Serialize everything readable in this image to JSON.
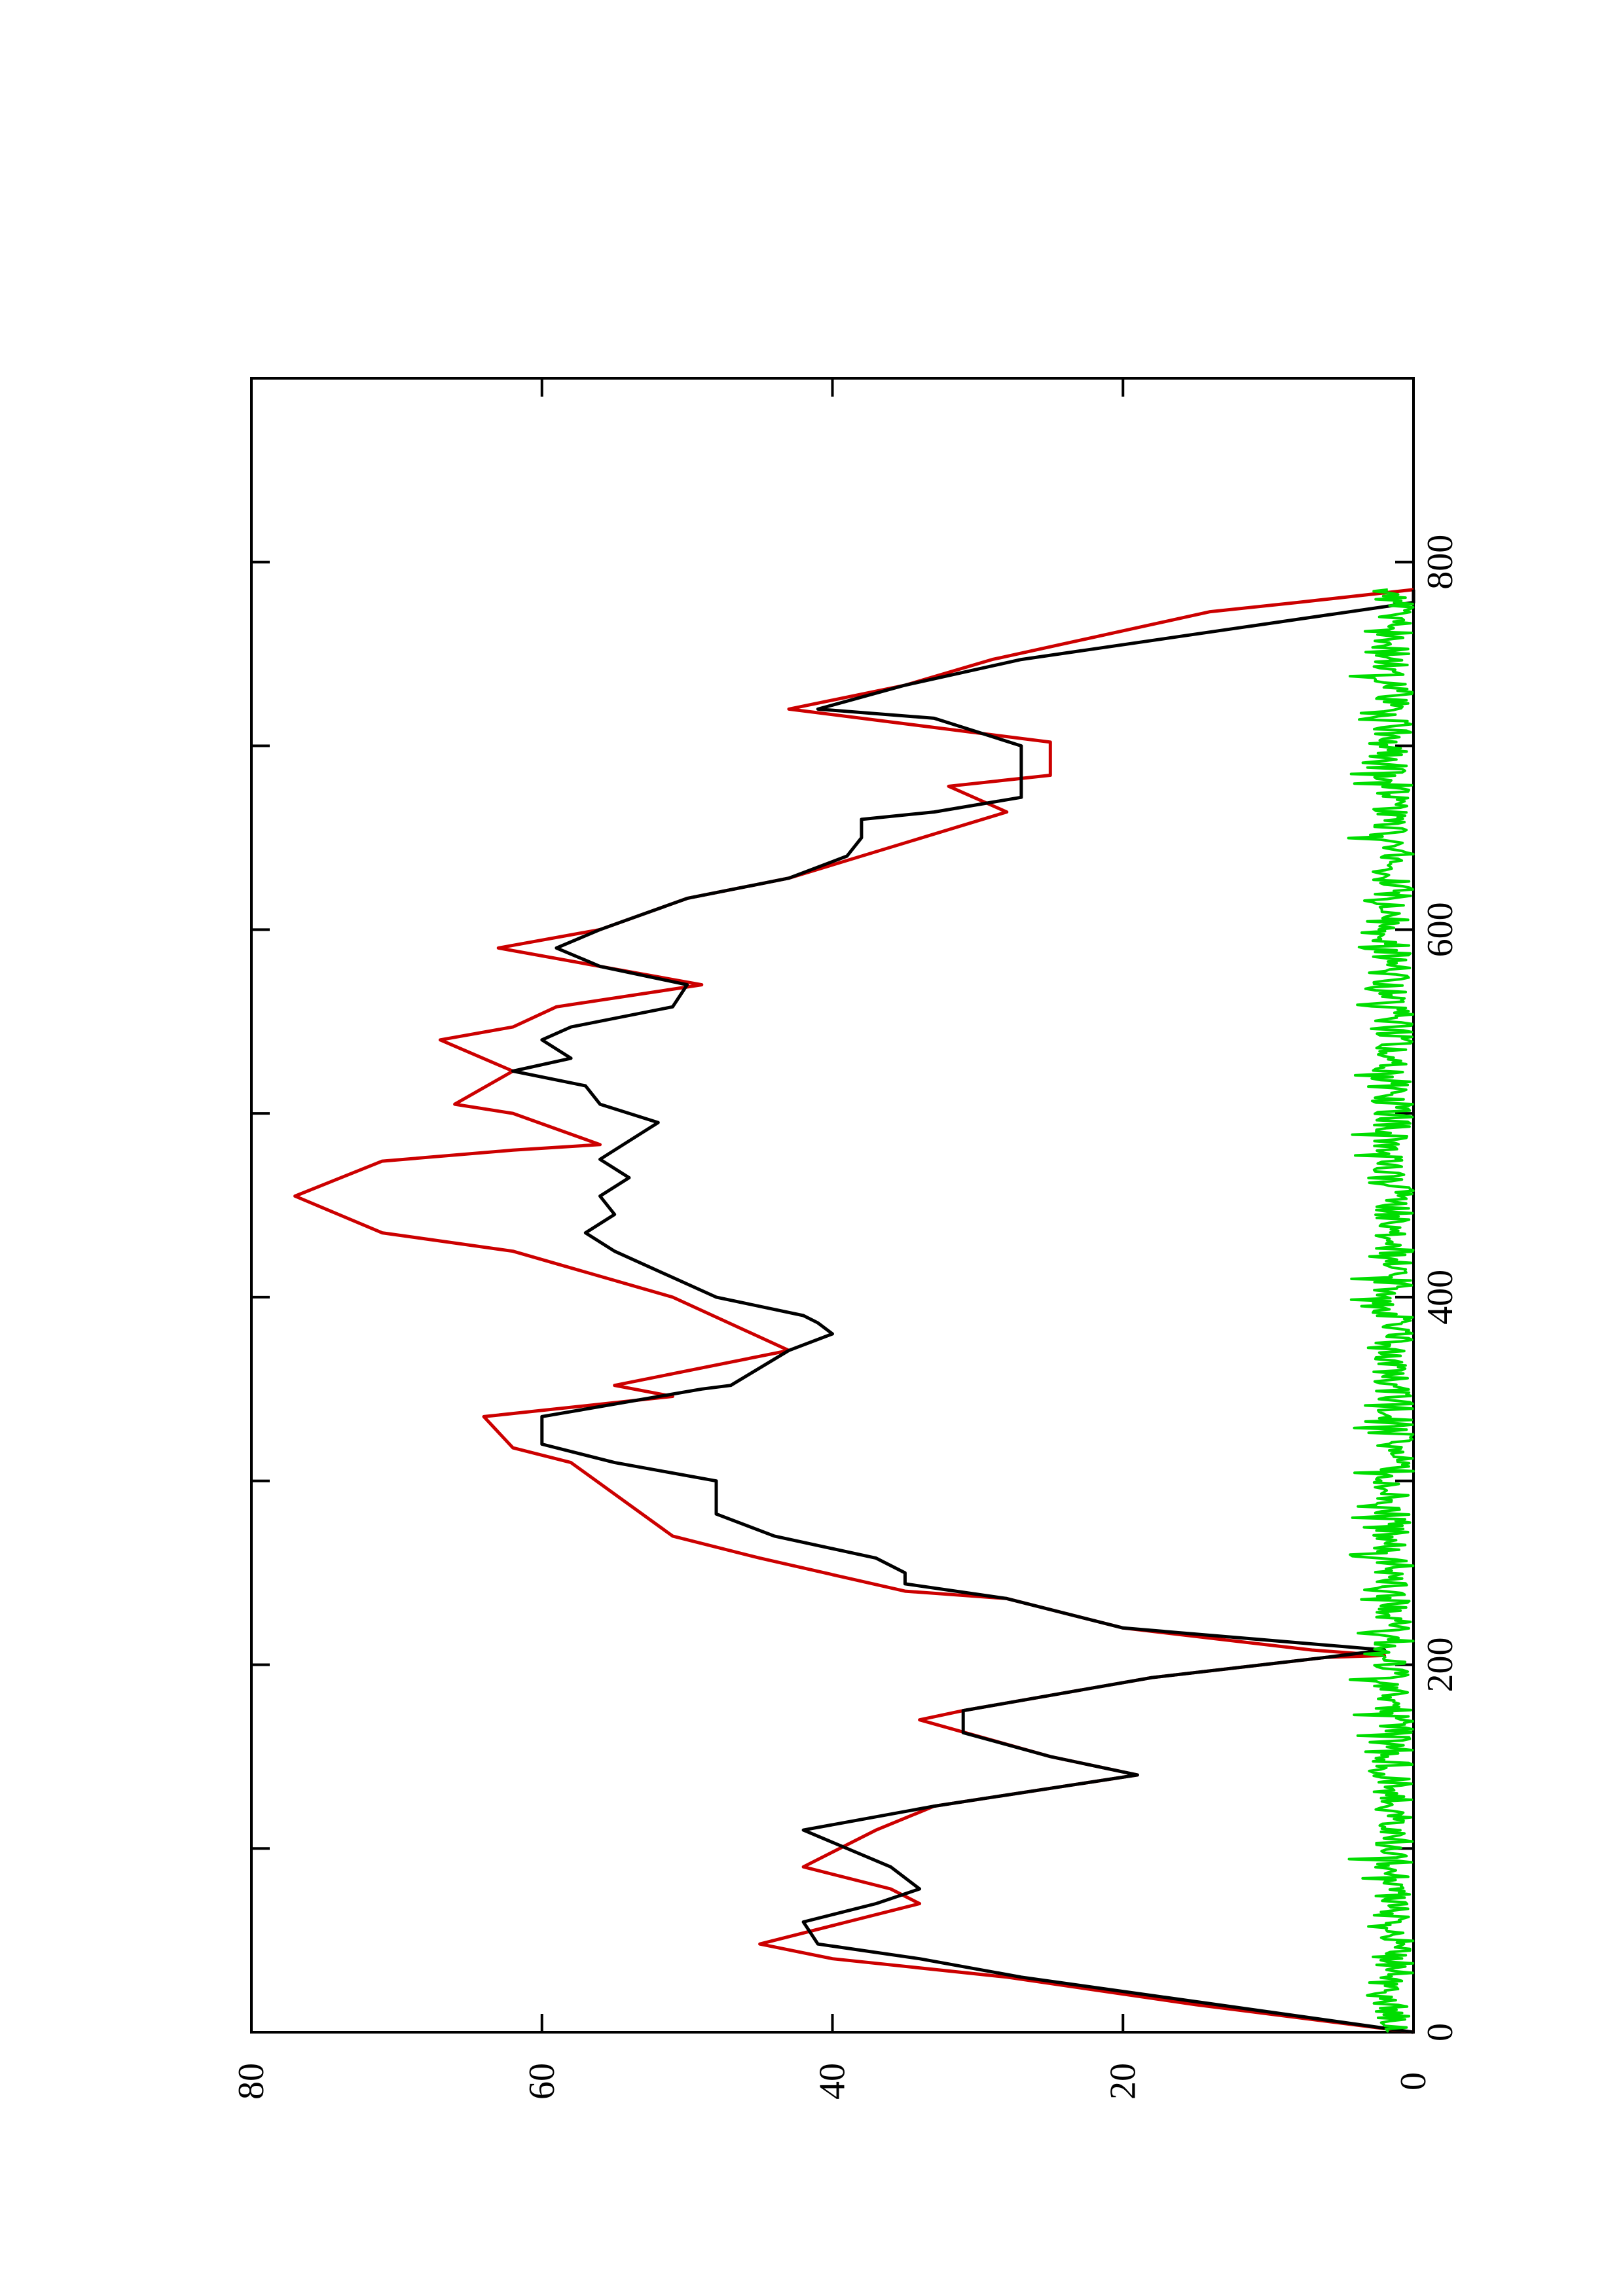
{
  "chart_data": {
    "type": "line",
    "orientation": "rotated 90 degrees counter-clockwise (x axis runs bottom-to-top, y axis runs right-to-left)",
    "title": "",
    "xlabel": "",
    "ylabel": "",
    "xlim": [
      0,
      900
    ],
    "ylim": [
      0,
      80
    ],
    "x_ticks": [
      0,
      200,
      400,
      600,
      800
    ],
    "y_ticks": [
      0,
      20,
      40,
      60,
      80
    ],
    "x_minor_ticks": [
      100,
      300,
      500,
      700
    ],
    "grid": false,
    "legend": "none",
    "series": [
      {
        "color": "#cc0000",
        "style": "step",
        "x": [
          0,
          15,
          15,
          30,
          30,
          40,
          40,
          48,
          48,
          60,
          60,
          70,
          70,
          78,
          78,
          90,
          90,
          110,
          110,
          123,
          123,
          140,
          140,
          150,
          150,
          170,
          170,
          175,
          175,
          193,
          193,
          204,
          204,
          205,
          205,
          208,
          208,
          220,
          220,
          236,
          236,
          240,
          240,
          258,
          258,
          270,
          270,
          310,
          310,
          318,
          318,
          335,
          335,
          346,
          346,
          352,
          352,
          371,
          371,
          400,
          400,
          425,
          425,
          435,
          435,
          455,
          455,
          474,
          474,
          480,
          480,
          483,
          483,
          500,
          500,
          505,
          505,
          523,
          523,
          540,
          540,
          547,
          547,
          558,
          558,
          570,
          570,
          590,
          590,
          600,
          600,
          617,
          617,
          628,
          628,
          664,
          664,
          678,
          678,
          684,
          684,
          702,
          702,
          720,
          720,
          733,
          733,
          747,
          747,
          773,
          773,
          778,
          778,
          785
        ],
        "y": [
          0,
          15,
          15,
          28,
          28,
          40,
          40,
          45,
          45,
          39,
          39,
          34,
          34,
          36,
          36,
          42,
          42,
          37,
          37,
          33,
          33,
          19,
          19,
          25,
          25,
          34,
          34,
          31,
          31,
          18,
          18,
          6,
          6,
          2,
          2,
          7,
          7,
          20,
          20,
          28,
          28,
          35,
          35,
          45,
          45,
          51,
          51,
          58,
          58,
          62,
          62,
          64,
          64,
          51,
          51,
          55,
          55,
          43,
          43,
          51,
          51,
          62,
          62,
          71,
          71,
          77,
          77,
          71,
          71,
          62,
          62,
          56,
          56,
          62,
          62,
          66,
          66,
          62,
          62,
          67,
          67,
          62,
          62,
          59,
          59,
          49,
          49,
          63,
          63,
          56,
          56,
          50,
          50,
          43,
          43,
          28,
          28,
          32,
          32,
          25,
          25,
          25,
          25,
          43,
          43,
          35,
          35,
          29,
          29,
          14,
          14,
          8,
          8,
          0
        ]
      },
      {
        "color": "#000000",
        "style": "line",
        "x": [
          0,
          30,
          40,
          48,
          60,
          70,
          78,
          90,
          110,
          123,
          140,
          150,
          163,
          175,
          193,
          204,
          208,
          220,
          236,
          244,
          250,
          258,
          270,
          282,
          300,
          310,
          320,
          335,
          350,
          352,
          371,
          380,
          386,
          390,
          400,
          425,
          435,
          445,
          455,
          465,
          475,
          485,
          495,
          505,
          515,
          523,
          530,
          540,
          547,
          558,
          570,
          580,
          590,
          600,
          617,
          628,
          640,
          650,
          660,
          664,
          672,
          684,
          700,
          715,
          720,
          733,
          747,
          778,
          785
        ],
        "y": [
          0,
          27,
          34,
          41,
          42,
          37,
          34,
          36,
          42,
          33,
          19,
          25,
          31,
          31,
          18,
          6,
          2,
          20,
          28,
          35,
          35,
          37,
          44,
          48,
          48,
          55,
          60,
          60,
          49,
          47,
          43,
          40,
          41,
          42,
          48,
          55,
          57,
          55,
          56,
          54,
          56,
          54,
          52,
          56,
          57,
          62,
          58,
          60,
          58,
          51,
          50,
          56,
          59,
          56,
          50,
          43,
          39,
          38,
          38,
          33,
          27,
          27,
          27,
          33,
          41,
          35,
          27,
          0,
          0
        ]
      },
      {
        "color": "#00dd00",
        "style": "noise",
        "amplitude_max": 3.5,
        "x_range": [
          0,
          785
        ]
      }
    ]
  }
}
